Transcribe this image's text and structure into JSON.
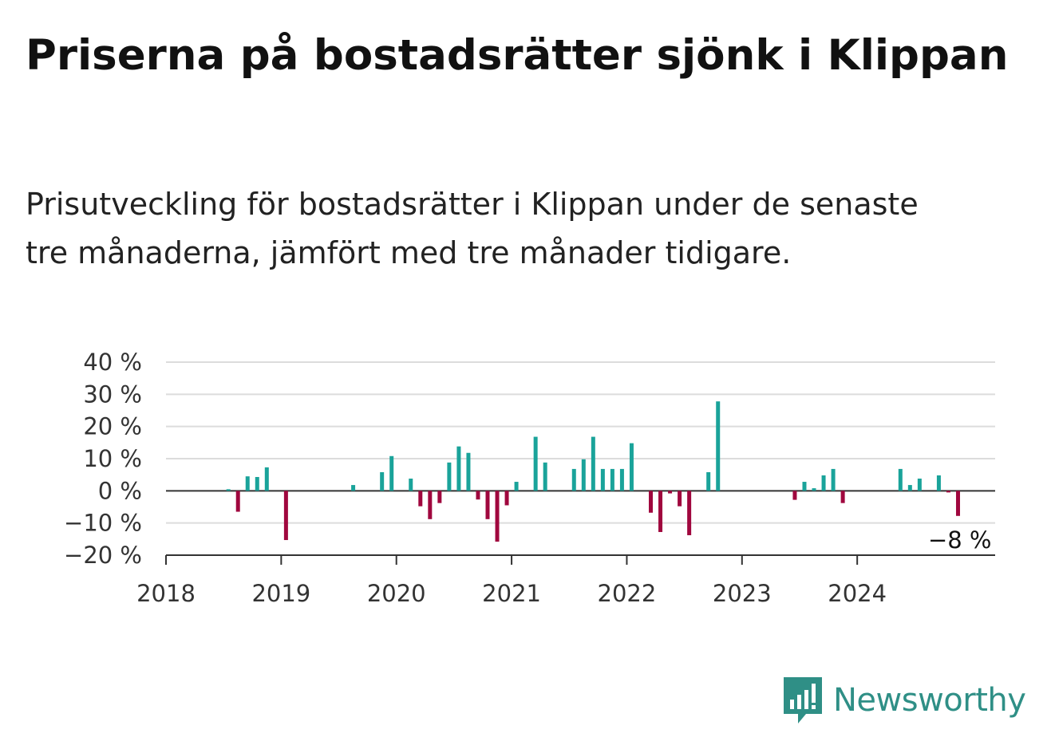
{
  "title": "Priserna på bostadsrätter sjönk i Klippan",
  "subtitle": "Prisutveckling för bostadsrätter i Klippan under de senaste tre månaderna, jämfört med tre månader tidigare.",
  "brand": {
    "name": "Newsworthy",
    "icon": "newsworthy-logo-icon",
    "color": "#2f8f86"
  },
  "chart_data": {
    "type": "bar",
    "title": "Priserna på bostadsrätter sjönk i Klippan",
    "subtitle": "Prisutveckling för bostadsrätter i Klippan under de senaste tre månaderna, jämfört med tre månader tidigare.",
    "xlabel": "",
    "ylabel": "",
    "y_unit": "%",
    "ylim": [
      -20,
      40
    ],
    "yticks": [
      40,
      30,
      20,
      10,
      0,
      -10,
      -20
    ],
    "ytick_labels": [
      "40 %",
      "30 %",
      "20 %",
      "10 %",
      "0 %",
      "−10 %",
      "−20 %"
    ],
    "xlim": [
      "2018-01",
      "2024-12"
    ],
    "xtick_labels": [
      "2018",
      "2019",
      "2020",
      "2021",
      "2022",
      "2023",
      "2024"
    ],
    "grid": true,
    "colors": {
      "positive": "#1aa39a",
      "negative": "#a0073e"
    },
    "end_label": "−8 %",
    "categories": [
      "2018-07",
      "2018-08",
      "2018-09",
      "2018-10",
      "2018-11",
      "2019-01",
      "2019-08",
      "2019-11",
      "2019-12",
      "2020-02",
      "2020-03",
      "2020-04",
      "2020-05",
      "2020-06",
      "2020-07",
      "2020-08",
      "2020-09",
      "2020-10",
      "2020-11",
      "2020-12",
      "2021-01",
      "2021-03",
      "2021-04",
      "2021-07",
      "2021-08",
      "2021-09",
      "2021-10",
      "2021-11",
      "2021-12",
      "2022-01",
      "2022-03",
      "2022-04",
      "2022-05",
      "2022-06",
      "2022-07",
      "2022-09",
      "2022-10",
      "2023-06",
      "2023-07",
      "2023-08",
      "2023-09",
      "2023-10",
      "2023-11",
      "2024-05",
      "2024-06",
      "2024-07",
      "2024-09",
      "2024-10",
      "2024-11"
    ],
    "values": [
      0.5,
      -6.5,
      4.5,
      4.3,
      7.3,
      -15.3,
      1.8,
      5.8,
      10.8,
      3.8,
      -4.8,
      -8.8,
      -3.8,
      8.8,
      13.8,
      11.8,
      -2.7,
      -8.8,
      -15.8,
      -4.5,
      2.8,
      16.8,
      8.8,
      6.8,
      9.8,
      16.8,
      6.8,
      6.8,
      6.8,
      14.8,
      -6.8,
      -12.8,
      -0.8,
      -4.8,
      -13.8,
      5.8,
      27.8,
      -2.8,
      2.8,
      0.8,
      4.8,
      6.8,
      -3.8,
      6.8,
      1.8,
      3.8,
      4.8,
      -0.5,
      -7.8
    ]
  }
}
